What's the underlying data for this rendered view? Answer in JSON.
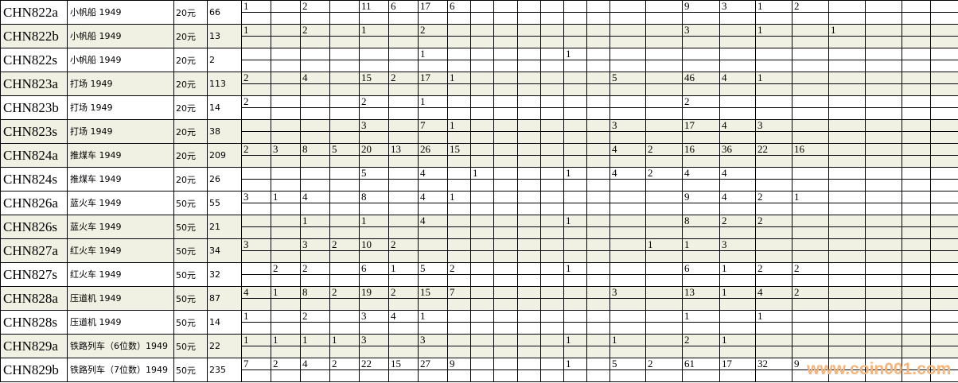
{
  "rows": [
    {
      "code": "CHN822a",
      "name": "小帆船 1949",
      "price": "20元",
      "count": "66",
      "shade": false,
      "cells": [
        "1",
        "",
        "2",
        "",
        "11",
        "6",
        "17",
        "6",
        "",
        "",
        "",
        "",
        "",
        "",
        "",
        "",
        "9",
        "3",
        "1",
        "2",
        "",
        "",
        "",
        ""
      ]
    },
    {
      "code": "CHN822b",
      "name": "小帆船 1949",
      "price": "20元",
      "count": "13",
      "shade": true,
      "cells": [
        "1",
        "",
        "2",
        "",
        "1",
        "",
        "2",
        "",
        "",
        "",
        "",
        "",
        "",
        "",
        "",
        "",
        "3",
        "",
        "1",
        "",
        "1",
        "",
        "",
        ""
      ]
    },
    {
      "code": "CHN822s",
      "name": "小帆船 1949",
      "price": "20元",
      "count": "2",
      "shade": false,
      "cells": [
        "",
        "",
        "",
        "",
        "",
        "",
        "1",
        "",
        "",
        "",
        "",
        "",
        "1",
        "",
        "",
        "",
        "",
        "",
        "",
        "",
        "",
        "",
        "",
        ""
      ]
    },
    {
      "code": "CHN823a",
      "name": "打场 1949",
      "price": "20元",
      "count": "113",
      "shade": true,
      "cells": [
        "2",
        "",
        "4",
        "",
        "15",
        "2",
        "17",
        "1",
        "",
        "",
        "",
        "",
        "",
        "",
        "5",
        "",
        "46",
        "4",
        "1",
        "",
        "",
        "",
        "",
        ""
      ]
    },
    {
      "code": "CHN823b",
      "name": "打场 1949",
      "price": "20元",
      "count": "14",
      "shade": false,
      "cells": [
        "2",
        "",
        "",
        "",
        "2",
        "",
        "1",
        "",
        "",
        "",
        "",
        "",
        "",
        "",
        "",
        "",
        "2",
        "",
        "",
        "",
        "",
        "",
        "",
        ""
      ]
    },
    {
      "code": "CHN823s",
      "name": "打场 1949",
      "price": "20元",
      "count": "38",
      "shade": true,
      "cells": [
        "",
        "",
        "",
        "",
        "3",
        "",
        "7",
        "1",
        "",
        "",
        "",
        "",
        "",
        "",
        "3",
        "",
        "17",
        "4",
        "3",
        "",
        "",
        "",
        "",
        ""
      ]
    },
    {
      "code": "CHN824a",
      "name": "推煤车 1949",
      "price": "20元",
      "count": "209",
      "shade": true,
      "cells": [
        "2",
        "3",
        "8",
        "5",
        "20",
        "13",
        "26",
        "15",
        "",
        "",
        "",
        "",
        "",
        "",
        "4",
        "2",
        "16",
        "36",
        "22",
        "16",
        "",
        "",
        "",
        ""
      ]
    },
    {
      "code": "CHN824s",
      "name": "推煤车 1949",
      "price": "20元",
      "count": "26",
      "shade": false,
      "cells": [
        "",
        "",
        "",
        "",
        "5",
        "",
        "4",
        "",
        "1",
        "",
        "",
        "",
        "1",
        "",
        "4",
        "2",
        "4",
        "4",
        "",
        "",
        "",
        "",
        "",
        ""
      ]
    },
    {
      "code": "CHN826a",
      "name": "蓝火车 1949",
      "price": "50元",
      "count": "55",
      "shade": false,
      "cells": [
        "3",
        "1",
        "4",
        "",
        "8",
        "",
        "4",
        "1",
        "",
        "",
        "",
        "",
        "",
        "",
        "",
        "",
        "9",
        "4",
        "2",
        "1",
        "",
        "",
        "",
        ""
      ]
    },
    {
      "code": "CHN826s",
      "name": "蓝火车 1949",
      "price": "50元",
      "count": "21",
      "shade": true,
      "cells": [
        "",
        "",
        "1",
        "",
        "1",
        "",
        "4",
        "",
        "",
        "",
        "",
        "",
        "1",
        "",
        "",
        "",
        "8",
        "2",
        "2",
        "",
        "",
        "",
        "",
        ""
      ]
    },
    {
      "code": "CHN827a",
      "name": "红火车 1949",
      "price": "50元",
      "count": "34",
      "shade": true,
      "cells": [
        "3",
        "",
        "3",
        "2",
        "10",
        "2",
        "",
        "",
        "",
        "",
        "",
        "",
        "",
        "",
        "",
        "1",
        "1",
        "3",
        "",
        "",
        "",
        "",
        "",
        ""
      ]
    },
    {
      "code": "CHN827s",
      "name": "红火车 1949",
      "price": "50元",
      "count": "32",
      "shade": false,
      "cells": [
        "",
        "2",
        "2",
        "",
        "6",
        "1",
        "5",
        "2",
        "",
        "",
        "",
        "",
        "1",
        "",
        "",
        "",
        "6",
        "1",
        "2",
        "2",
        "",
        "",
        "",
        ""
      ]
    },
    {
      "code": "CHN828a",
      "name": "压道机 1949",
      "price": "50元",
      "count": "87",
      "shade": true,
      "cells": [
        "4",
        "1",
        "8",
        "2",
        "19",
        "2",
        "15",
        "7",
        "",
        "",
        "",
        "",
        "",
        "",
        "3",
        "",
        "13",
        "1",
        "4",
        "2",
        "",
        "",
        "",
        ""
      ]
    },
    {
      "code": "CHN828s",
      "name": "压道机 1949",
      "price": "50元",
      "count": "14",
      "shade": false,
      "cells": [
        "1",
        "",
        "2",
        "",
        "3",
        "4",
        "1",
        "",
        "",
        "",
        "",
        "",
        "",
        "",
        "",
        "",
        "1",
        "",
        "1",
        "",
        "",
        "",
        "",
        ""
      ]
    },
    {
      "code": "CHN829a",
      "name": "铁路列车（6位数）1949",
      "price": "50元",
      "count": "22",
      "shade": true,
      "cells": [
        "1",
        "1",
        "1",
        "1",
        "3",
        "",
        "3",
        "",
        "",
        "",
        "",
        "",
        "1",
        "",
        "1",
        "",
        "2",
        "1",
        "",
        "",
        "",
        "",
        "",
        ""
      ]
    },
    {
      "code": "CHN829b",
      "name": "铁路列车（7位数）1949",
      "price": "50元",
      "count": "235",
      "shade": false,
      "cells": [
        "7",
        "2",
        "4",
        "2",
        "22",
        "15",
        "27",
        "9",
        "",
        "",
        "",
        "",
        "1",
        "",
        "5",
        "2",
        "61",
        "17",
        "32",
        "9",
        "",
        "",
        "",
        ""
      ]
    }
  ],
  "watermark": "www.coin001.com",
  "colors": {
    "shade": "#f0f0e3",
    "watermark": "#f6b47a"
  }
}
